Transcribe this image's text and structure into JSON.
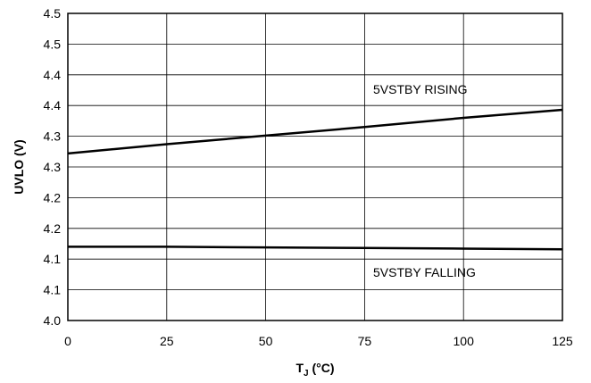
{
  "chart_data": {
    "type": "line",
    "xlabel": {
      "main": "T",
      "sub": "J",
      "unit": " (°C)"
    },
    "ylabel": "UVLO (V)",
    "xlim": [
      0,
      125
    ],
    "ylim": [
      4.0,
      4.5
    ],
    "x_ticks": [
      0,
      25,
      50,
      75,
      100,
      125
    ],
    "x_tick_labels": [
      "0",
      "25",
      "50",
      "75",
      "100",
      "125"
    ],
    "y_ticks": [
      4.0,
      4.05,
      4.1,
      4.15,
      4.2,
      4.25,
      4.3,
      4.35,
      4.4,
      4.45,
      4.5
    ],
    "y_tick_labels": [
      "4.0",
      "4.1",
      "4.1",
      "4.2",
      "4.2",
      "4.3",
      "4.3",
      "4.4",
      "4.4",
      "4.5",
      "4.5"
    ],
    "grid": true,
    "series": [
      {
        "name": "5VSTBY RISING",
        "x": [
          0,
          25,
          50,
          75,
          100,
          125
        ],
        "values": [
          4.272,
          4.287,
          4.301,
          4.315,
          4.33,
          4.343
        ],
        "color": "#000000"
      },
      {
        "name": "5VSTBY FALLING",
        "x": [
          0,
          25,
          50,
          75,
          100,
          125
        ],
        "values": [
          4.12,
          4.12,
          4.119,
          4.118,
          4.117,
          4.116
        ],
        "color": "#000000"
      }
    ],
    "annotations": [
      {
        "text": "5VSTBY RISING",
        "series": 0
      },
      {
        "text": "5VSTBY FALLING",
        "series": 1
      }
    ]
  }
}
